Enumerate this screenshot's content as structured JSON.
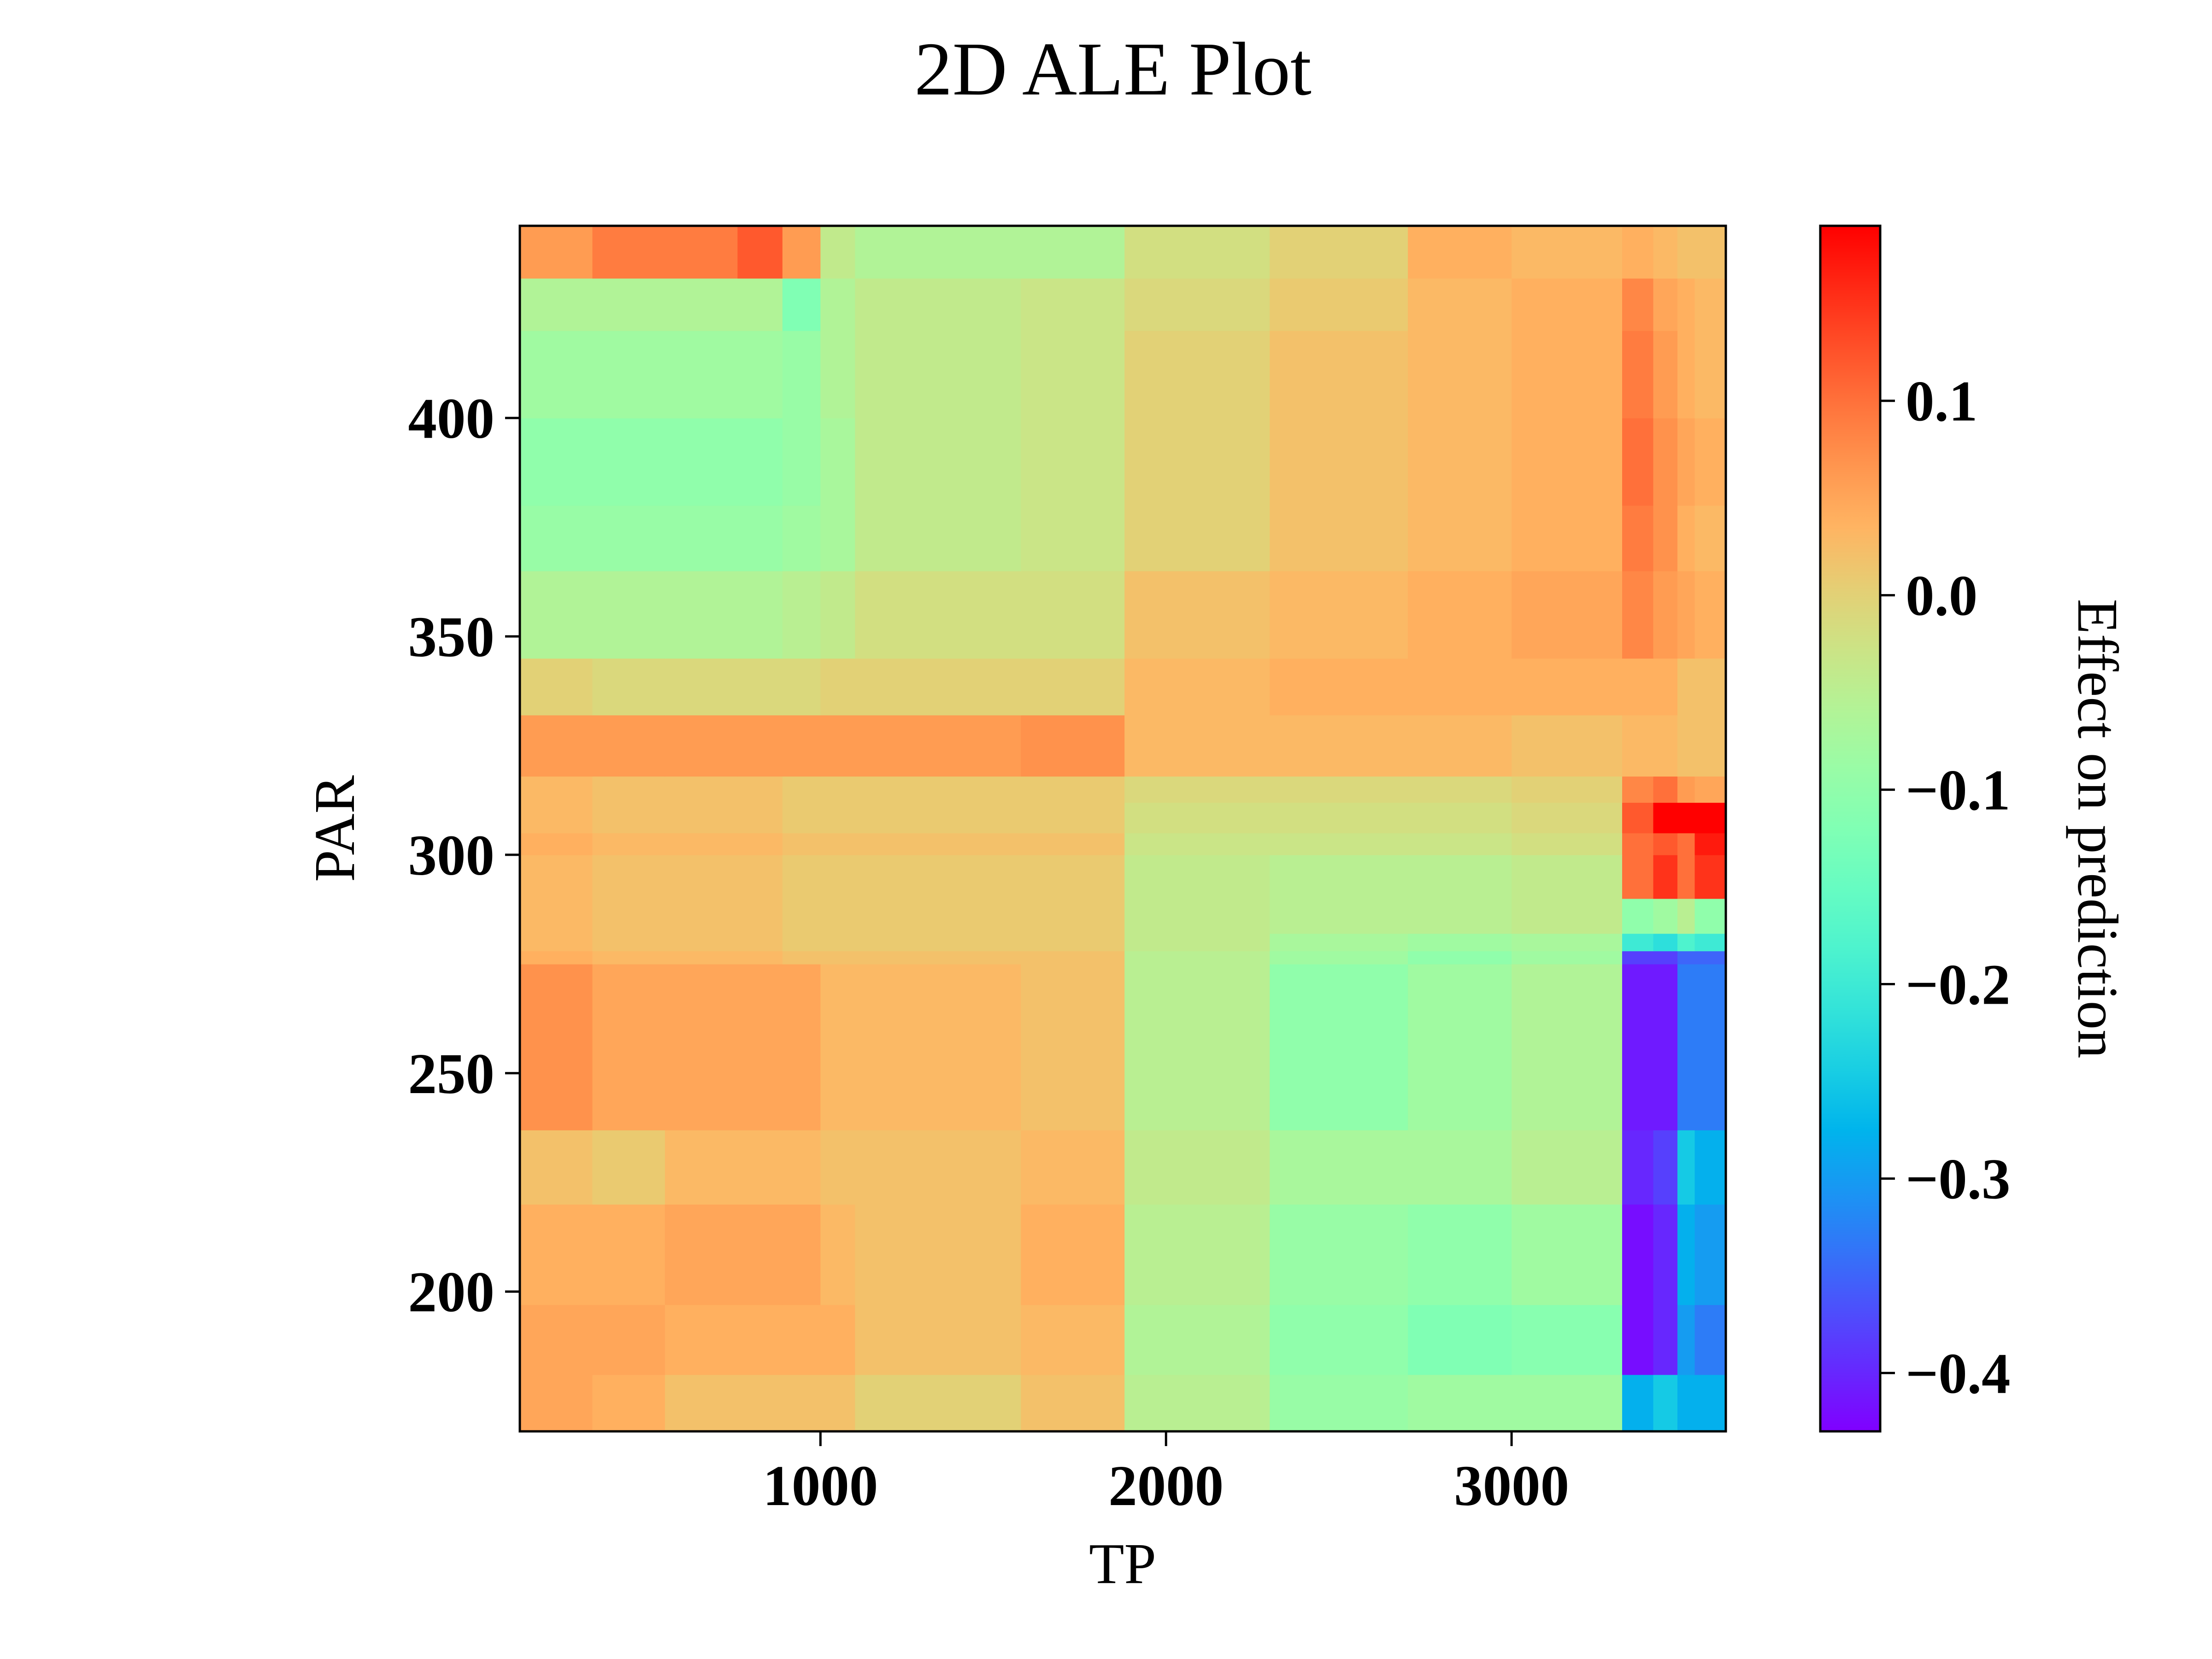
{
  "chart_data": {
    "type": "heatmap",
    "title": "2D ALE Plot",
    "xlabel": "TP",
    "ylabel": "PAR",
    "colorbar_label": "Effect on prediction",
    "xlim": [
      130,
      3620
    ],
    "ylim": [
      168,
      444
    ],
    "clim": [
      -0.43,
      0.19
    ],
    "colormap": "rainbow",
    "xticks": [
      {
        "value": 1000,
        "label": "1000"
      },
      {
        "value": 2000,
        "label": "2000"
      },
      {
        "value": 3000,
        "label": "3000"
      }
    ],
    "yticks": [
      {
        "value": 200,
        "label": "200"
      },
      {
        "value": 250,
        "label": "250"
      },
      {
        "value": 300,
        "label": "300"
      },
      {
        "value": 350,
        "label": "350"
      },
      {
        "value": 400,
        "label": "400"
      }
    ],
    "cticks": [
      {
        "value": 0.1,
        "label": "0.1"
      },
      {
        "value": 0.0,
        "label": "0.0"
      },
      {
        "value": -0.1,
        "label": "−0.1"
      },
      {
        "value": -0.2,
        "label": "−0.2"
      },
      {
        "value": -0.3,
        "label": "−0.3"
      },
      {
        "value": -0.4,
        "label": "−0.4"
      }
    ],
    "x_edges": [
      130,
      340,
      550,
      760,
      890,
      1000,
      1100,
      1580,
      1880,
      2300,
      2700,
      3000,
      3320,
      3410,
      3480,
      3530,
      3620
    ],
    "y_edges": [
      168,
      181,
      197,
      220,
      237,
      275,
      278,
      282,
      290,
      300,
      305,
      312,
      318,
      332,
      345,
      365,
      380,
      400,
      420,
      432,
      444
    ],
    "values": [
      [
        0.05,
        0.04,
        0.02,
        0.02,
        0.02,
        0.02,
        0.0,
        0.02,
        -0.05,
        -0.09,
        -0.08,
        -0.08,
        -0.28,
        -0.25,
        -0.28,
        -0.28
      ],
      [
        0.05,
        0.05,
        0.04,
        0.04,
        0.04,
        0.04,
        0.02,
        0.03,
        -0.06,
        -0.1,
        -0.12,
        -0.11,
        -0.42,
        -0.4,
        -0.3,
        -0.33
      ],
      [
        0.04,
        0.04,
        0.05,
        0.05,
        0.05,
        0.03,
        0.02,
        0.04,
        -0.05,
        -0.09,
        -0.1,
        -0.08,
        -0.42,
        -0.4,
        -0.28,
        -0.3
      ],
      [
        0.02,
        0.01,
        0.03,
        0.03,
        0.03,
        0.02,
        0.02,
        0.03,
        -0.04,
        -0.07,
        -0.07,
        -0.05,
        -0.4,
        -0.38,
        -0.25,
        -0.28
      ],
      [
        0.07,
        0.05,
        0.05,
        0.05,
        0.05,
        0.03,
        0.03,
        0.02,
        -0.05,
        -0.1,
        -0.08,
        -0.06,
        -0.41,
        -0.41,
        -0.33,
        -0.33
      ],
      [
        0.04,
        0.03,
        0.03,
        0.03,
        0.02,
        0.02,
        0.02,
        0.02,
        -0.05,
        -0.08,
        -0.1,
        -0.08,
        -0.38,
        -0.38,
        -0.35,
        -0.35
      ],
      [
        0.03,
        0.02,
        0.02,
        0.02,
        0.01,
        0.01,
        0.01,
        0.01,
        -0.04,
        -0.07,
        -0.08,
        -0.07,
        -0.2,
        -0.22,
        -0.18,
        -0.2
      ],
      [
        0.03,
        0.02,
        0.02,
        0.02,
        0.01,
        0.01,
        0.01,
        0.01,
        -0.04,
        -0.05,
        -0.05,
        -0.04,
        -0.1,
        -0.08,
        -0.05,
        -0.1
      ],
      [
        0.03,
        0.02,
        0.02,
        0.02,
        0.01,
        0.01,
        0.01,
        0.01,
        -0.04,
        -0.05,
        -0.05,
        -0.04,
        0.1,
        0.15,
        0.1,
        0.15
      ],
      [
        0.04,
        0.03,
        0.03,
        0.03,
        0.02,
        0.02,
        0.02,
        0.02,
        -0.03,
        -0.03,
        -0.03,
        -0.02,
        0.1,
        0.12,
        0.1,
        0.17
      ],
      [
        0.03,
        0.02,
        0.02,
        0.02,
        0.01,
        0.01,
        0.01,
        0.01,
        -0.02,
        -0.02,
        -0.02,
        -0.01,
        0.12,
        0.19,
        0.19,
        0.19
      ],
      [
        0.03,
        0.02,
        0.02,
        0.02,
        0.01,
        0.01,
        0.01,
        0.01,
        -0.01,
        -0.01,
        -0.01,
        0.0,
        0.08,
        0.1,
        0.06,
        0.05
      ],
      [
        0.06,
        0.06,
        0.06,
        0.06,
        0.06,
        0.06,
        0.06,
        0.07,
        0.03,
        0.03,
        0.03,
        0.02,
        0.03,
        0.03,
        0.02,
        0.02
      ],
      [
        0.0,
        -0.01,
        -0.01,
        -0.01,
        -0.01,
        0.0,
        0.0,
        0.0,
        0.03,
        0.04,
        0.04,
        0.04,
        0.04,
        0.04,
        0.02,
        0.02
      ],
      [
        -0.06,
        -0.06,
        -0.06,
        -0.06,
        -0.05,
        -0.04,
        -0.02,
        -0.02,
        0.02,
        0.03,
        0.04,
        0.05,
        0.08,
        0.06,
        0.05,
        0.04
      ],
      [
        -0.09,
        -0.09,
        -0.09,
        -0.09,
        -0.08,
        -0.07,
        -0.04,
        -0.03,
        0.0,
        0.02,
        0.03,
        0.04,
        0.09,
        0.07,
        0.04,
        0.03
      ],
      [
        -0.1,
        -0.1,
        -0.1,
        -0.1,
        -0.09,
        -0.07,
        -0.04,
        -0.03,
        0.0,
        0.02,
        0.03,
        0.04,
        0.1,
        0.07,
        0.05,
        0.04
      ],
      [
        -0.08,
        -0.08,
        -0.08,
        -0.08,
        -0.09,
        -0.06,
        -0.04,
        -0.03,
        0.0,
        0.02,
        0.03,
        0.04,
        0.09,
        0.06,
        0.04,
        0.03
      ],
      [
        -0.06,
        -0.06,
        -0.06,
        -0.06,
        -0.12,
        -0.06,
        -0.04,
        -0.03,
        -0.01,
        0.01,
        0.03,
        0.04,
        0.08,
        0.05,
        0.04,
        0.03
      ],
      [
        0.06,
        0.09,
        0.09,
        0.12,
        0.06,
        -0.04,
        -0.06,
        -0.06,
        -0.02,
        0.0,
        0.04,
        0.03,
        0.04,
        0.03,
        0.02,
        0.02
      ]
    ]
  }
}
